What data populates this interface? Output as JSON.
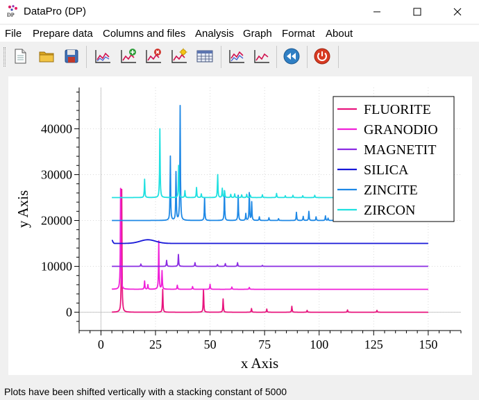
{
  "window": {
    "title": "DataPro (DP)",
    "icon_text": "DP"
  },
  "menu": [
    "File",
    "Prepare data",
    "Columns and files",
    "Analysis",
    "Graph",
    "Format",
    "About"
  ],
  "toolbar": [
    "new-document-icon",
    "open-folder-icon",
    "save-disk-icon",
    "plot-icon",
    "add-plot-icon",
    "remove-plot-icon",
    "plot-settings-icon",
    "table-icon",
    "plot-stack-icon",
    "plot-overlay-icon",
    "rewind-icon",
    "power-icon"
  ],
  "status": {
    "text": "Plots have been shifted vertically with a stacking constant of 5000"
  },
  "chart_data": {
    "type": "line",
    "xlabel": "x Axis",
    "ylabel": "y Axis",
    "xlim": [
      -10,
      165
    ],
    "ylim": [
      -4000,
      49000
    ],
    "xticks": [
      0,
      25,
      50,
      75,
      100,
      125,
      150
    ],
    "yticks": [
      0,
      10000,
      20000,
      30000,
      40000
    ],
    "xticklabels": [
      "0",
      "25",
      "50",
      "75",
      "100",
      "125",
      "150"
    ],
    "yticklabels": [
      "0",
      "10000",
      "20000",
      "30000",
      "40000"
    ],
    "grid": true,
    "legend_position": "top-right",
    "x_range": [
      5,
      150
    ],
    "series": [
      {
        "name": "FLUORITE",
        "color": "#e8157e",
        "baseline": 0,
        "peaks": [
          [
            9.5,
            26800
          ],
          [
            28.3,
            5000
          ],
          [
            47.0,
            5000
          ],
          [
            56.0,
            2900
          ],
          [
            69.0,
            800
          ],
          [
            76.0,
            700
          ],
          [
            87.5,
            1300
          ],
          [
            94.5,
            400
          ],
          [
            113.0,
            500
          ],
          [
            126.5,
            400
          ]
        ]
      },
      {
        "name": "GRANODIO",
        "color": "#f020d8",
        "baseline": 5000,
        "peaks": [
          [
            9.0,
            22000
          ],
          [
            20.0,
            1800
          ],
          [
            21.5,
            1000
          ],
          [
            26.5,
            10500
          ],
          [
            28.0,
            4000
          ],
          [
            35.0,
            900
          ],
          [
            42.0,
            600
          ],
          [
            50.0,
            1100
          ],
          [
            60.0,
            500
          ],
          [
            68.0,
            400
          ]
        ]
      },
      {
        "name": "MAGNETIT",
        "color": "#8a2be2",
        "baseline": 10000,
        "peaks": [
          [
            18.3,
            500
          ],
          [
            30.1,
            1300
          ],
          [
            35.5,
            2600
          ],
          [
            43.1,
            800
          ],
          [
            53.4,
            400
          ],
          [
            57.0,
            600
          ],
          [
            62.6,
            800
          ],
          [
            74.0,
            200
          ]
        ]
      },
      {
        "name": "SILICA",
        "color": "#1818d8",
        "baseline": 15000,
        "bumps": [
          [
            5.0,
            700,
            0.6
          ],
          [
            21.5,
            800,
            5
          ]
        ]
      },
      {
        "name": "ZINCITE",
        "color": "#1e88e5",
        "baseline": 20000,
        "peaks": [
          [
            31.8,
            14000
          ],
          [
            34.4,
            10500
          ],
          [
            36.3,
            25000
          ],
          [
            47.5,
            5000
          ],
          [
            56.6,
            6500
          ],
          [
            62.9,
            5500
          ],
          [
            66.4,
            1500
          ],
          [
            68.0,
            6000
          ],
          [
            69.1,
            4000
          ],
          [
            72.6,
            800
          ],
          [
            77.0,
            600
          ],
          [
            81.4,
            400
          ],
          [
            89.6,
            1800
          ],
          [
            92.7,
            900
          ],
          [
            95.3,
            2000
          ],
          [
            98.6,
            800
          ],
          [
            102.9,
            1000
          ],
          [
            104.1,
            500
          ],
          [
            107.4,
            400
          ],
          [
            110.4,
            500
          ],
          [
            116.3,
            400
          ],
          [
            121.6,
            400
          ],
          [
            125.2,
            400
          ],
          [
            134.0,
            300
          ],
          [
            136.5,
            300
          ],
          [
            138.0,
            300
          ]
        ]
      },
      {
        "name": "ZIRCON",
        "color": "#1fe0e0",
        "baseline": 25000,
        "peaks": [
          [
            20.0,
            4000
          ],
          [
            27.0,
            15000
          ],
          [
            35.6,
            7000
          ],
          [
            38.5,
            1500
          ],
          [
            43.8,
            2200
          ],
          [
            46.0,
            800
          ],
          [
            53.5,
            5000
          ],
          [
            55.6,
            2000
          ],
          [
            56.7,
            1400
          ],
          [
            59.5,
            700
          ],
          [
            61.3,
            800
          ],
          [
            64.5,
            600
          ],
          [
            66.8,
            700
          ],
          [
            68.5,
            500
          ],
          [
            74.0,
            600
          ],
          [
            80.5,
            900
          ],
          [
            84.5,
            400
          ],
          [
            88.0,
            500
          ],
          [
            92.5,
            400
          ],
          [
            98.0,
            500
          ]
        ]
      }
    ]
  }
}
